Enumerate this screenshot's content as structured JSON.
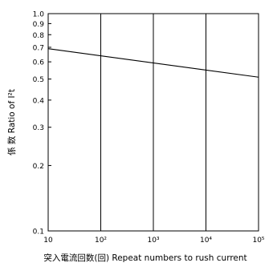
{
  "chart_data": {
    "type": "line",
    "title": "",
    "xlabel": "突入電流回数(回) Repeat numbers to rush current",
    "ylabel": "係 数 Ratio of I²t",
    "x_scale": "log",
    "y_scale": "log",
    "xlim": [
      10,
      100000
    ],
    "ylim": [
      0.1,
      1.0
    ],
    "grid": "vertical-decades",
    "x_ticks": [
      "10",
      "10²",
      "10³",
      "10⁴",
      "10⁵"
    ],
    "y_ticks": [
      "0.1",
      "0.2",
      "0.3",
      "0.4",
      "0.5",
      "0.6",
      "0.7",
      "0.8",
      "0.9",
      "1.0"
    ],
    "series": [
      {
        "x": [
          10,
          100000
        ],
        "y": [
          0.69,
          0.51
        ]
      }
    ],
    "colors": {
      "line": "#000000",
      "grid": "#000000",
      "background": "#ffffff"
    }
  }
}
